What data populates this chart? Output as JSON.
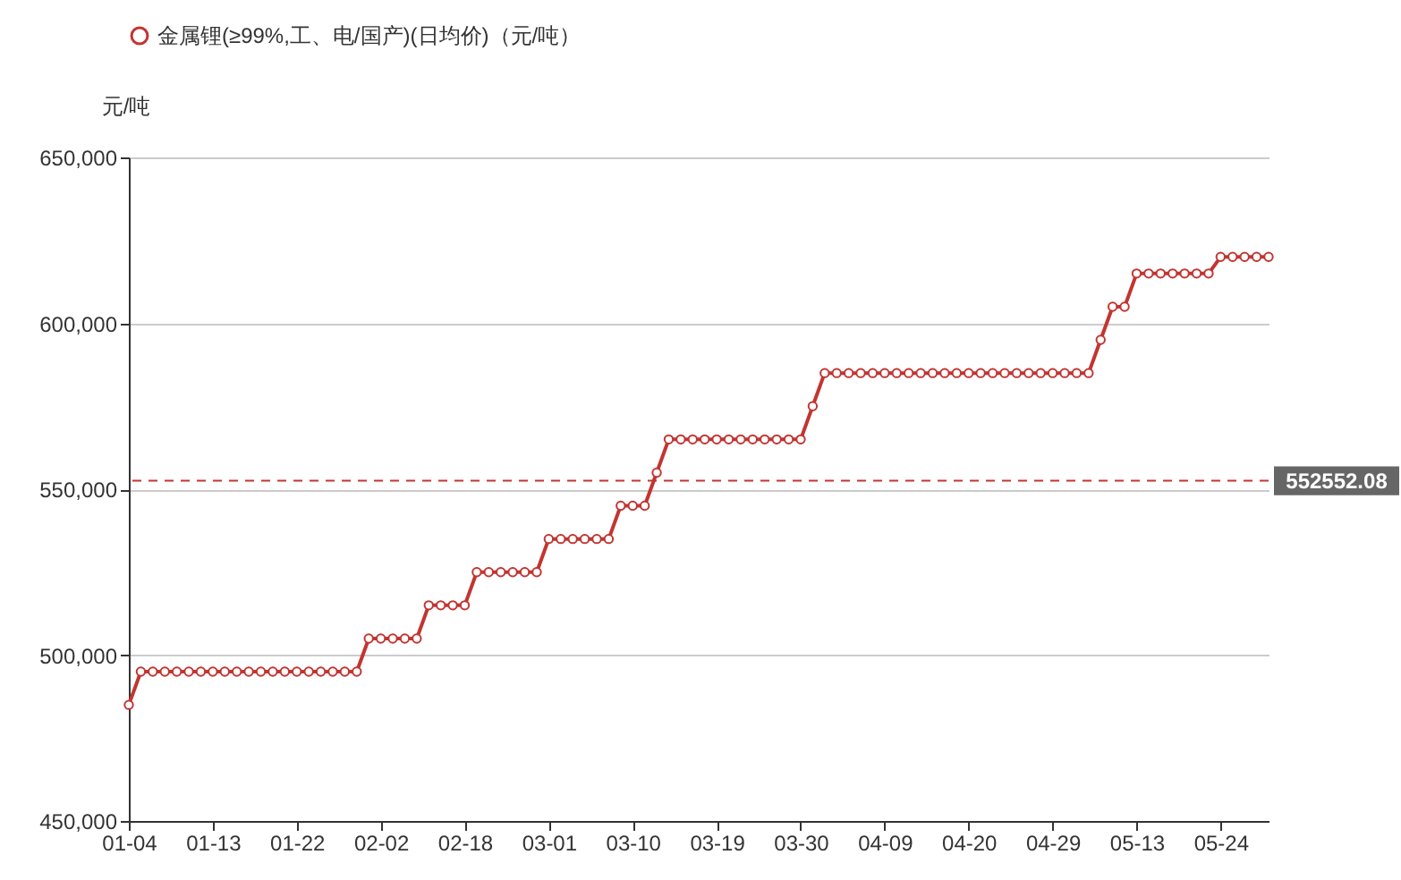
{
  "chart_data": {
    "type": "line",
    "ylabel": "元/吨",
    "categories": [
      "01-04",
      null,
      null,
      null,
      null,
      null,
      null,
      "01-13",
      null,
      null,
      null,
      null,
      null,
      null,
      "01-22",
      null,
      null,
      null,
      null,
      null,
      null,
      "02-02",
      null,
      null,
      null,
      null,
      null,
      null,
      "02-18",
      null,
      null,
      null,
      null,
      null,
      null,
      "03-01",
      null,
      null,
      null,
      null,
      null,
      null,
      "03-10",
      null,
      null,
      null,
      null,
      null,
      null,
      "03-19",
      null,
      null,
      null,
      null,
      null,
      null,
      "03-30",
      null,
      null,
      null,
      null,
      null,
      null,
      "04-09",
      null,
      null,
      null,
      null,
      null,
      null,
      "04-20",
      null,
      null,
      null,
      null,
      null,
      null,
      "04-29",
      null,
      null,
      null,
      null,
      null,
      null,
      "05-13",
      null,
      null,
      null,
      null,
      null,
      null,
      "05-24",
      null,
      null,
      null,
      null
    ],
    "series": [
      {
        "name": "金属锂(≥99%,工、电/国产)(日均价)（元/吨）",
        "color": "#c23531",
        "values": [
          485000,
          495000,
          495000,
          495000,
          495000,
          495000,
          495000,
          495000,
          495000,
          495000,
          495000,
          495000,
          495000,
          495000,
          495000,
          495000,
          495000,
          495000,
          495000,
          495000,
          505000,
          505000,
          505000,
          505000,
          505000,
          515000,
          515000,
          515000,
          515000,
          525000,
          525000,
          525000,
          525000,
          525000,
          525000,
          535000,
          535000,
          535000,
          535000,
          535000,
          535000,
          545000,
          545000,
          545000,
          555000,
          565000,
          565000,
          565000,
          565000,
          565000,
          565000,
          565000,
          565000,
          565000,
          565000,
          565000,
          565000,
          575000,
          585000,
          585000,
          585000,
          585000,
          585000,
          585000,
          585000,
          585000,
          585000,
          585000,
          585000,
          585000,
          585000,
          585000,
          585000,
          585000,
          585000,
          585000,
          585000,
          585000,
          585000,
          585000,
          585000,
          595000,
          605000,
          605000,
          615000,
          615000,
          615000,
          615000,
          615000,
          615000,
          615000,
          620000,
          620000,
          620000,
          620000,
          620000
        ]
      }
    ],
    "ylim": [
      450000,
      650000
    ],
    "yticks": [
      {
        "value": 450000,
        "label": "450,000"
      },
      {
        "value": 500000,
        "label": "500,000"
      },
      {
        "value": 550000,
        "label": "550,000"
      },
      {
        "value": 600000,
        "label": "600,000"
      },
      {
        "value": 650000,
        "label": "650,000"
      }
    ],
    "ref_lines": [
      {
        "axis": "y",
        "value": 552552.08,
        "label": "552552.08",
        "color": "#c23531",
        "line_style": "dashed"
      }
    ],
    "grid": "y",
    "legend": "top",
    "marker": "circle",
    "line_style": "solid"
  }
}
